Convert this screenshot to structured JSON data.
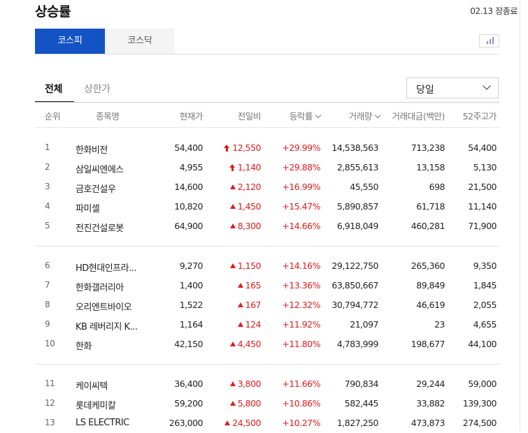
{
  "header": {
    "title": "상승률",
    "status": "02.13 장종료"
  },
  "market_tabs": [
    {
      "label": "코스피",
      "active": true
    },
    {
      "label": "코스닥",
      "active": false
    }
  ],
  "chart_icon": "bar-chart-icon",
  "sub_tabs": [
    {
      "label": "전체",
      "active": true
    },
    {
      "label": "상한가",
      "active": false
    }
  ],
  "period_select": {
    "value": "당일"
  },
  "columns": {
    "rank": "순위",
    "name": "종목명",
    "price": "현재가",
    "change": "전일비",
    "rate": "등락률",
    "volume": "거래량",
    "amount": "거래대금(백만)",
    "high52": "52주고가"
  },
  "colors": {
    "accent": "#1353c3",
    "up": "#e21b1b"
  },
  "rows": [
    {
      "rank": "1",
      "name": "한화비전",
      "price": "54,400",
      "change": "12,550",
      "limit": true,
      "rate": "+29.99%",
      "volume": "14,538,563",
      "amount": "713,238",
      "high52": "54,400"
    },
    {
      "rank": "2",
      "name": "삼일씨엔에스",
      "price": "4,955",
      "change": "1,140",
      "limit": true,
      "rate": "+29.88%",
      "volume": "2,855,613",
      "amount": "13,158",
      "high52": "5,130"
    },
    {
      "rank": "3",
      "name": "금호건설우",
      "price": "14,600",
      "change": "2,120",
      "limit": false,
      "rate": "+16.99%",
      "volume": "45,550",
      "amount": "698",
      "high52": "21,500"
    },
    {
      "rank": "4",
      "name": "파미셀",
      "price": "10,820",
      "change": "1,450",
      "limit": false,
      "rate": "+15.47%",
      "volume": "5,890,857",
      "amount": "61,718",
      "high52": "11,140"
    },
    {
      "rank": "5",
      "name": "전진건설로봇",
      "price": "64,900",
      "change": "8,300",
      "limit": false,
      "rate": "+14.66%",
      "volume": "6,918,049",
      "amount": "460,281",
      "high52": "71,900"
    },
    {
      "rank": "6",
      "name": "HD현대인프라...",
      "price": "9,270",
      "change": "1,150",
      "limit": false,
      "rate": "+14.16%",
      "volume": "29,122,750",
      "amount": "265,360",
      "high52": "9,350"
    },
    {
      "rank": "7",
      "name": "한화갤러리아",
      "price": "1,400",
      "change": "165",
      "limit": false,
      "rate": "+13.36%",
      "volume": "63,850,667",
      "amount": "89,849",
      "high52": "1,845"
    },
    {
      "rank": "8",
      "name": "오리엔트바이오",
      "price": "1,522",
      "change": "167",
      "limit": false,
      "rate": "+12.32%",
      "volume": "30,794,772",
      "amount": "46,619",
      "high52": "2,055"
    },
    {
      "rank": "9",
      "name": "KB 레버리지 K...",
      "price": "1,164",
      "change": "124",
      "limit": false,
      "rate": "+11.92%",
      "volume": "21,097",
      "amount": "23",
      "high52": "4,655"
    },
    {
      "rank": "10",
      "name": "한화",
      "price": "42,150",
      "change": "4,450",
      "limit": false,
      "rate": "+11.80%",
      "volume": "4,783,999",
      "amount": "198,677",
      "high52": "44,100"
    },
    {
      "rank": "11",
      "name": "케이씨텍",
      "price": "36,400",
      "change": "3,800",
      "limit": false,
      "rate": "+11.66%",
      "volume": "790,834",
      "amount": "29,244",
      "high52": "59,000"
    },
    {
      "rank": "12",
      "name": "롯데케미칼",
      "price": "59,200",
      "change": "5,800",
      "limit": false,
      "rate": "+10.86%",
      "volume": "582,445",
      "amount": "33,882",
      "high52": "139,300"
    },
    {
      "rank": "13",
      "name": "LS ELECTRIC",
      "price": "263,000",
      "change": "24,500",
      "limit": false,
      "rate": "+10.27%",
      "volume": "1,827,250",
      "amount": "473,873",
      "high52": "274,500"
    }
  ]
}
